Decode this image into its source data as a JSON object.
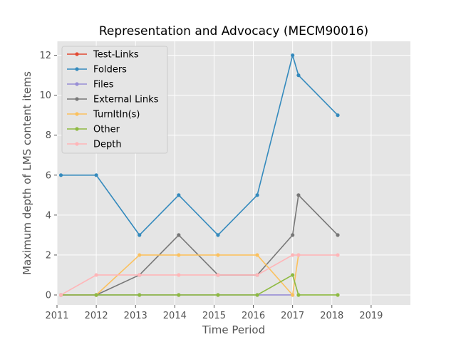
{
  "chart_data": {
    "type": "line",
    "title": "Representation and Advocacy (MECM90016)",
    "xlabel": "Time Period",
    "ylabel": "Maximum depth of LMS content items",
    "xlim": [
      2011,
      2020
    ],
    "ylim": [
      -0.5,
      12.7
    ],
    "xticks": [
      2011,
      2012,
      2013,
      2014,
      2015,
      2016,
      2017,
      2018,
      2019
    ],
    "yticks": [
      0,
      2,
      4,
      6,
      8,
      10,
      12
    ],
    "grid": true,
    "legend_position": "upper-left",
    "series": [
      {
        "name": "Test-Links",
        "color": "#E24A33",
        "x": [
          2011.1,
          2012.0
        ],
        "y": [
          0,
          0
        ]
      },
      {
        "name": "Folders",
        "color": "#348ABD",
        "x": [
          2011.1,
          2012.0,
          2013.1,
          2014.1,
          2015.1,
          2016.1,
          2017.0,
          2017.15,
          2018.15
        ],
        "y": [
          6,
          6,
          3,
          5,
          3,
          5,
          12,
          11,
          9
        ]
      },
      {
        "name": "Files",
        "color": "#988ED5",
        "x": [
          2011.1,
          2012.0,
          2013.1,
          2014.1,
          2015.1,
          2016.1,
          2017.0
        ],
        "y": [
          0,
          0,
          0,
          0,
          0,
          0,
          0
        ]
      },
      {
        "name": "External Links",
        "color": "#777777",
        "x": [
          2012.0,
          2013.1,
          2014.1,
          2015.1,
          2016.1,
          2017.0,
          2017.15,
          2018.15
        ],
        "y": [
          0,
          1,
          3,
          1,
          1,
          3,
          5,
          3
        ]
      },
      {
        "name": "TurnItIn(s)",
        "color": "#FBC15E",
        "x": [
          2012.0,
          2013.1,
          2014.1,
          2015.1,
          2016.1,
          2017.0,
          2017.15
        ],
        "y": [
          0,
          2,
          2,
          2,
          2,
          0,
          2
        ]
      },
      {
        "name": "Other",
        "color": "#8EBA42",
        "x": [
          2011.1,
          2012.0,
          2013.1,
          2014.1,
          2015.1,
          2016.1,
          2017.0,
          2017.15,
          2018.15
        ],
        "y": [
          0,
          0,
          0,
          0,
          0,
          0,
          1,
          0,
          0
        ]
      },
      {
        "name": "Depth",
        "color": "#FFB5B8",
        "x": [
          2011.1,
          2012.0,
          2013.1,
          2014.1,
          2015.1,
          2016.1,
          2017.0,
          2017.15,
          2018.15
        ],
        "y": [
          0,
          1,
          1,
          1,
          1,
          1,
          2,
          2,
          2
        ]
      }
    ]
  }
}
